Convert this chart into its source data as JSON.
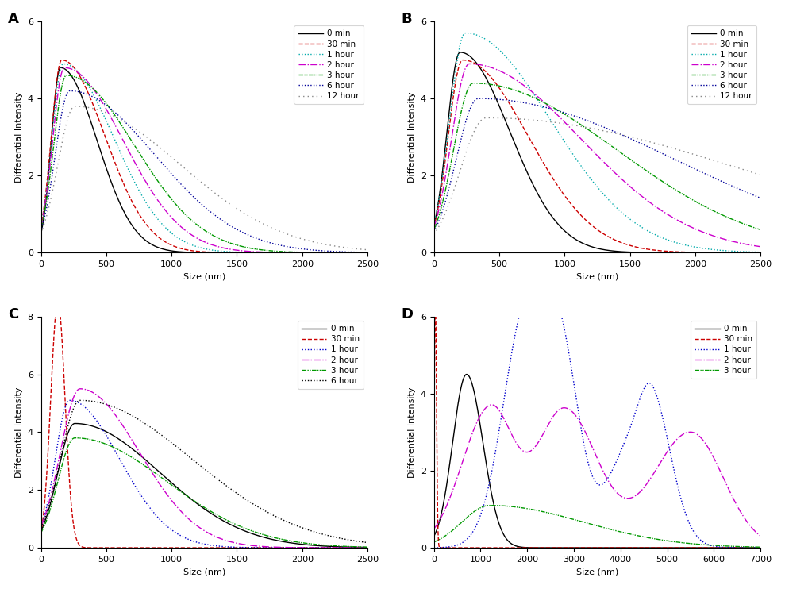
{
  "panels": [
    "A",
    "B",
    "C",
    "D"
  ],
  "panel_A": {
    "series": [
      {
        "label": "0 min",
        "color": "#000000",
        "linestyle": "solid",
        "peak": 150,
        "peak_val": 4.8,
        "decay": 280,
        "rise": 70
      },
      {
        "label": "30 min",
        "color": "#cc0000",
        "linestyle": "dashed",
        "peak": 160,
        "peak_val": 5.0,
        "decay": 330,
        "rise": 80
      },
      {
        "label": "1 hour",
        "color": "#00aaaa",
        "linestyle": "dotted",
        "peak": 170,
        "peak_val": 4.9,
        "decay": 390,
        "rise": 85
      },
      {
        "label": "2 hour",
        "color": "#cc00cc",
        "linestyle": "dashdot",
        "peak": 180,
        "peak_val": 4.8,
        "decay": 450,
        "rise": 90
      },
      {
        "label": "3 hour",
        "color": "#009900",
        "linestyle": "dashdotdot",
        "peak": 195,
        "peak_val": 4.6,
        "decay": 520,
        "rise": 97
      },
      {
        "label": "6 hour",
        "color": "#000099",
        "linestyle": "dotted",
        "peak": 220,
        "peak_val": 4.2,
        "decay": 650,
        "rise": 110
      },
      {
        "label": "12 hour",
        "color": "#888888",
        "linestyle": "loosedot",
        "peak": 260,
        "peak_val": 3.8,
        "decay": 800,
        "rise": 130
      }
    ],
    "xlim": [
      0,
      2500
    ],
    "ylim": [
      0,
      6
    ],
    "xticks": [
      0,
      500,
      1000,
      1500,
      2000,
      2500
    ],
    "yticks": [
      0,
      2,
      4,
      6
    ]
  },
  "panel_B": {
    "series": [
      {
        "label": "0 min",
        "color": "#000000",
        "linestyle": "solid",
        "peak": 200,
        "peak_val": 5.2,
        "decay": 380,
        "rise": 100
      },
      {
        "label": "30 min",
        "color": "#cc0000",
        "linestyle": "dashed",
        "peak": 220,
        "peak_val": 5.0,
        "decay": 500,
        "rise": 110
      },
      {
        "label": "1 hour",
        "color": "#00aaaa",
        "linestyle": "dotted",
        "peak": 240,
        "peak_val": 5.7,
        "decay": 650,
        "rise": 120
      },
      {
        "label": "2 hour",
        "color": "#cc00cc",
        "linestyle": "dashdot",
        "peak": 270,
        "peak_val": 4.9,
        "decay": 850,
        "rise": 135
      },
      {
        "label": "3 hour",
        "color": "#009900",
        "linestyle": "dashdotdot",
        "peak": 300,
        "peak_val": 4.4,
        "decay": 1100,
        "rise": 150
      },
      {
        "label": "6 hour",
        "color": "#000099",
        "linestyle": "dotted",
        "peak": 340,
        "peak_val": 4.0,
        "decay": 1500,
        "rise": 170
      },
      {
        "label": "12 hour",
        "color": "#888888",
        "linestyle": "loosedot",
        "peak": 400,
        "peak_val": 3.5,
        "decay": 2000,
        "rise": 200
      }
    ],
    "xlim": [
      0,
      2500
    ],
    "ylim": [
      0,
      6
    ],
    "xticks": [
      0,
      500,
      1000,
      1500,
      2000,
      2500
    ],
    "yticks": [
      0,
      2,
      4,
      6
    ]
  },
  "panel_C": {
    "series": [
      {
        "label": "0 min",
        "color": "#000000",
        "linestyle": "solid",
        "peak": 260,
        "peak_val": 4.3,
        "decay": 650,
        "rise": 130
      },
      {
        "label": "30 min",
        "color": "#cc0000",
        "linestyle": "dashed",
        "peak": 130,
        "peak_val": 8.5,
        "decay": 55,
        "rise": 55
      },
      {
        "label": "1 hour",
        "color": "#0000cc",
        "linestyle": "dotted",
        "peak": 220,
        "peak_val": 5.1,
        "decay": 380,
        "rise": 110
      },
      {
        "label": "2 hour",
        "color": "#cc00cc",
        "linestyle": "dashdot",
        "peak": 300,
        "peak_val": 5.5,
        "decay": 450,
        "rise": 150
      },
      {
        "label": "3 hour",
        "color": "#009900",
        "linestyle": "dashdotdot",
        "peak": 260,
        "peak_val": 3.8,
        "decay": 700,
        "rise": 130
      },
      {
        "label": "6 hour",
        "color": "#000000",
        "linestyle": "dotted",
        "peak": 300,
        "peak_val": 5.1,
        "decay": 850,
        "rise": 150
      }
    ],
    "xlim": [
      0,
      2500
    ],
    "ylim": [
      0,
      8
    ],
    "xticks": [
      0,
      500,
      1000,
      1500,
      2000,
      2500
    ],
    "yticks": [
      0,
      2,
      4,
      6,
      8
    ]
  },
  "panel_D": {
    "series": [
      {
        "label": "0 min",
        "color": "#000000",
        "linestyle": "solid",
        "segments": [
          {
            "peak": 700,
            "peak_val": 4.5,
            "rise": 300,
            "decay": 350
          }
        ]
      },
      {
        "label": "30 min",
        "color": "#cc0000",
        "linestyle": "dashed",
        "segments": [
          {
            "peak": 30,
            "peak_val": 6.5,
            "rise": 20,
            "decay": 25
          }
        ]
      },
      {
        "label": "1 hour",
        "color": "#0000cc",
        "linestyle": "dotted",
        "segments": [
          {
            "peak": 2000,
            "peak_val": 6.3,
            "rise": 500,
            "decay": 350
          },
          {
            "peak": 2700,
            "peak_val": 5.3,
            "rise": 300,
            "decay": 400
          },
          {
            "peak": 4200,
            "peak_val": 2.5,
            "rise": 500,
            "decay": 600
          },
          {
            "peak": 4700,
            "peak_val": 2.4,
            "rise": 300,
            "decay": 400
          }
        ]
      },
      {
        "label": "2 hour",
        "color": "#cc00cc",
        "linestyle": "dashdot",
        "segments": [
          {
            "peak": 1200,
            "peak_val": 3.6,
            "rise": 600,
            "decay": 500
          },
          {
            "peak": 2800,
            "peak_val": 3.6,
            "rise": 600,
            "decay": 700
          },
          {
            "peak": 5500,
            "peak_val": 3.0,
            "rise": 800,
            "decay": 700
          }
        ]
      },
      {
        "label": "3 hour",
        "color": "#009900",
        "linestyle": "dashdotdot",
        "segments": [
          {
            "peak": 1200,
            "peak_val": 1.1,
            "rise": 600,
            "decay": 2000
          }
        ]
      }
    ],
    "xlim": [
      0,
      7000
    ],
    "ylim": [
      0,
      6
    ],
    "xticks": [
      0,
      1000,
      2000,
      3000,
      4000,
      5000,
      6000,
      7000
    ],
    "yticks": [
      0,
      2,
      4,
      6
    ]
  },
  "xlabel": "Size (nm)",
  "ylabel": "Differential Intensity"
}
